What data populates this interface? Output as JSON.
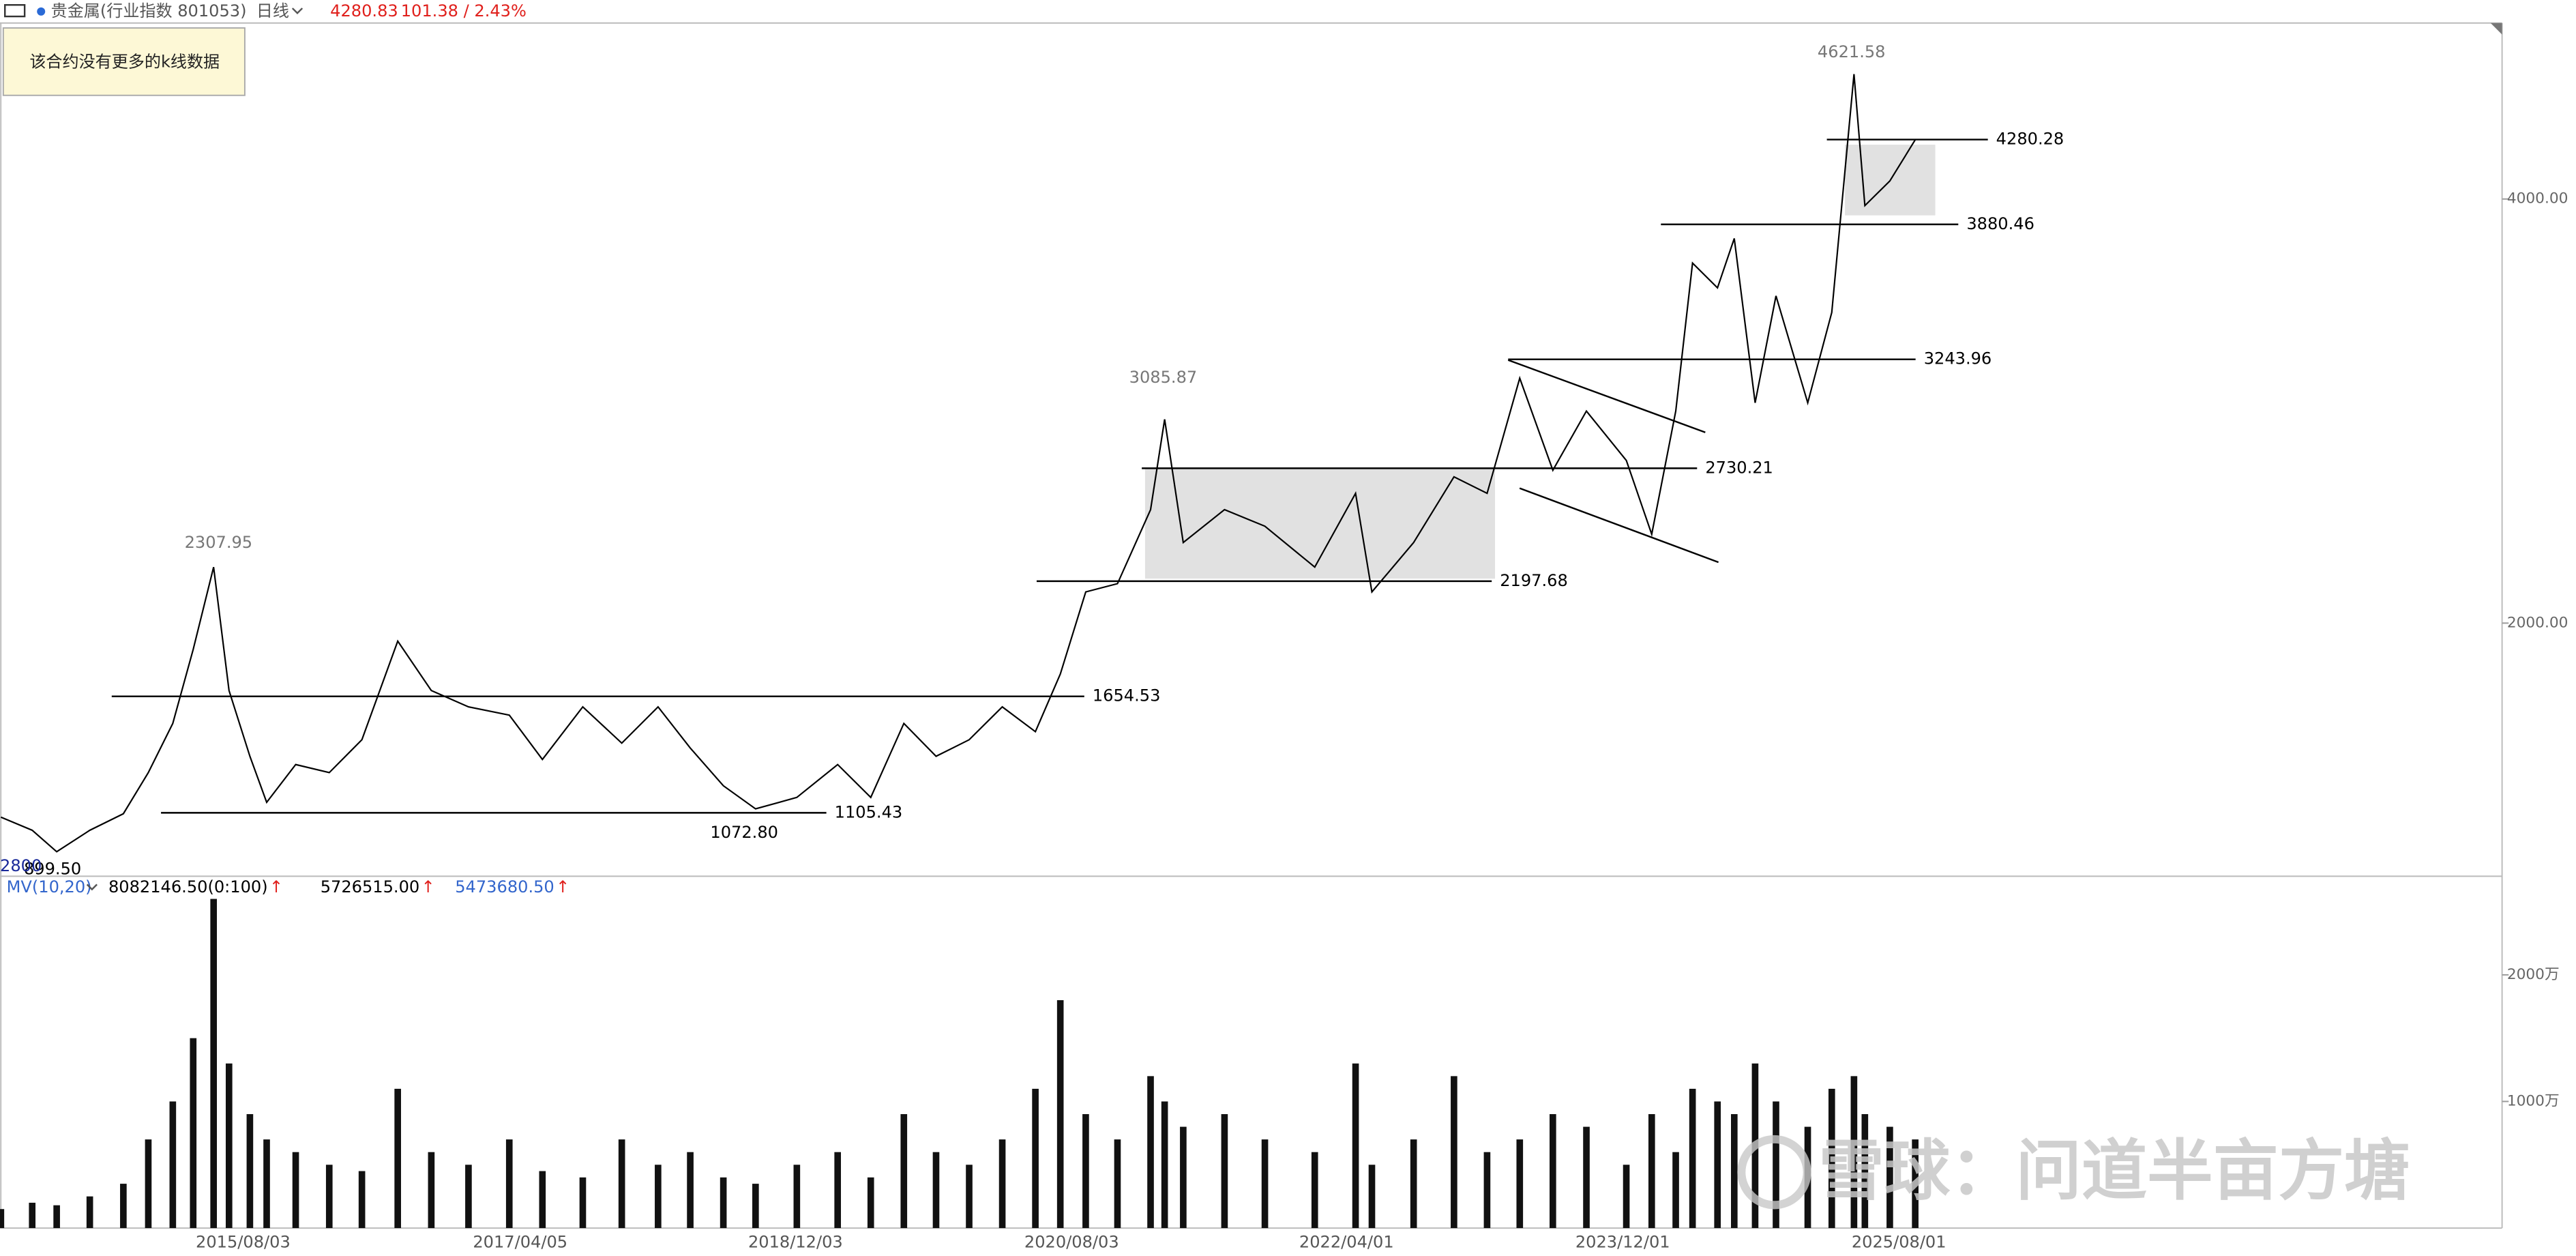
{
  "header": {
    "symbol": "贵金属(行业指数 801053)",
    "period": "日线",
    "price": "4280.83",
    "change": "101.38 / 2.43%"
  },
  "tooltip": "该合约没有更多的k线数据",
  "corner_label": "2800",
  "watermark": "雪球：问道半亩方塘",
  "chart_data": [
    {
      "type": "line",
      "color": "#000000",
      "x": [
        "2014/02/15",
        "2014/04/25",
        "2014/06/18",
        "2014/08/30",
        "2014/11/12",
        "2015/01/06",
        "2015/03/01",
        "2015/04/15",
        "2015/05/30",
        "2015/07/03",
        "2015/08/18",
        "2015/09/24",
        "2015/11/27",
        "2016/02/09",
        "2016/04/21",
        "2016/07/09",
        "2016/09/21",
        "2016/12/12",
        "2017/03/12",
        "2017/05/24",
        "2017/08/21",
        "2017/11/15",
        "2018/02/03",
        "2018/04/15",
        "2018/06/27",
        "2018/09/06",
        "2018/12/06",
        "2019/03/06",
        "2019/05/18",
        "2019/07/30",
        "2019/10/09",
        "2019/12/21",
        "2020/03/03",
        "2020/05/15",
        "2020/07/09",
        "2020/09/03",
        "2020/11/12",
        "2021/01/24",
        "2021/02/24",
        "2021/04/06",
        "2021/07/06",
        "2021/10/03",
        "2022/01/21",
        "2022/04/21",
        "2022/05/27",
        "2022/08/27",
        "2022/11/24",
        "2023/02/05",
        "2023/04/18",
        "2023/06/30",
        "2023/09/12",
        "2023/12/09",
        "2024/02/03",
        "2024/03/27",
        "2024/05/03",
        "2024/06/27",
        "2024/08/03",
        "2024/09/18",
        "2024/11/03",
        "2025/01/12",
        "2025/03/06",
        "2025/04/24",
        "2025/05/18",
        "2025/07/12",
        "2025/09/06"
      ],
      "values": [
        1085,
        1023,
        922,
        1023,
        1101,
        1295,
        1527,
        1876,
        2264,
        1682,
        1372,
        1155,
        1333,
        1295,
        1450,
        1915,
        1682,
        1605,
        1566,
        1357,
        1605,
        1434,
        1605,
        1411,
        1233,
        1124,
        1178,
        1333,
        1178,
        1527,
        1372,
        1450,
        1605,
        1488,
        1760,
        2147,
        2186,
        2535,
        2961,
        2380,
        2535,
        2457,
        2264,
        2612,
        2147,
        2380,
        2690,
        2612,
        3155,
        2721,
        3000,
        2767,
        2419,
        3000,
        3698,
        3581,
        3814,
        3039,
        3543,
        3039,
        3465,
        4589,
        3969,
        4085,
        4279
      ],
      "xlim": [
        "2014/02/13",
        "2029/03/23"
      ],
      "ylim": [
        814,
        4830
      ],
      "yticks": [
        {
          "value": 2000,
          "label": "2000.00"
        },
        {
          "value": 4000,
          "label": "4000.00"
        }
      ],
      "xticks": [
        "2015/08/03",
        "2017/04/05",
        "2018/12/03",
        "2020/08/03",
        "2022/04/01",
        "2023/12/01",
        "2025/08/01"
      ],
      "levels": [
        1654.53,
        1105.43,
        2197.68,
        2730.21,
        3243.96,
        3880.46,
        4280.28
      ],
      "extremes": [
        2307.95,
        3085.87,
        4621.58,
        {
          "value": 1072.8,
          "label": "1072.80"
        },
        {
          "value": 899.5,
          "label": "899.50"
        }
      ]
    },
    {
      "type": "bar",
      "title": "MV(10,20)",
      "title_color": "#3366cc",
      "arrow_color": "#e0201c",
      "color": "#111111",
      "legend": [
        {
          "text": "8082146.50(0:100)",
          "arrow": "↑",
          "color": "#000000"
        },
        {
          "text": "5726515.00",
          "arrow": "↑",
          "color": "#000000"
        },
        {
          "text": "5473680.50",
          "arrow": "↑",
          "color": "#3366cc"
        }
      ],
      "x": [
        "2014/02/15",
        "2014/04/25",
        "2014/06/18",
        "2014/08/30",
        "2014/11/12",
        "2015/01/06",
        "2015/03/01",
        "2015/04/15",
        "2015/05/30",
        "2015/07/03",
        "2015/08/18",
        "2015/09/24",
        "2015/11/27",
        "2016/02/09",
        "2016/04/21",
        "2016/07/09",
        "2016/09/21",
        "2016/12/12",
        "2017/03/12",
        "2017/05/24",
        "2017/08/21",
        "2017/11/15",
        "2018/02/03",
        "2018/04/15",
        "2018/06/27",
        "2018/09/06",
        "2018/12/06",
        "2019/03/06",
        "2019/05/18",
        "2019/07/30",
        "2019/10/09",
        "2019/12/21",
        "2020/03/03",
        "2020/05/15",
        "2020/07/09",
        "2020/09/03",
        "2020/11/12",
        "2021/01/24",
        "2021/02/24",
        "2021/04/06",
        "2021/07/06",
        "2021/10/03",
        "2022/01/21",
        "2022/04/21",
        "2022/05/27",
        "2022/08/27",
        "2022/11/24",
        "2023/02/05",
        "2023/04/18",
        "2023/06/30",
        "2023/09/12",
        "2023/12/09",
        "2024/02/03",
        "2024/03/27",
        "2024/05/03",
        "2024/06/27",
        "2024/08/03",
        "2024/09/18",
        "2024/11/03",
        "2025/01/12",
        "2025/03/06",
        "2025/04/24",
        "2025/05/18",
        "2025/07/12",
        "2025/09/06"
      ],
      "values": [
        150,
        200,
        180,
        250,
        350,
        700,
        1000,
        1500,
        2600,
        1300,
        900,
        700,
        600,
        500,
        450,
        1100,
        600,
        500,
        700,
        450,
        400,
        700,
        500,
        600,
        400,
        350,
        500,
        600,
        400,
        900,
        600,
        500,
        700,
        1100,
        1800,
        900,
        700,
        1200,
        1000,
        800,
        900,
        700,
        600,
        1300,
        500,
        700,
        1200,
        600,
        700,
        900,
        800,
        500,
        900,
        600,
        1100,
        1000,
        900,
        1300,
        1000,
        800,
        1100,
        1200,
        900,
        800,
        700
      ],
      "xlim": [
        "2014/02/13",
        "2029/03/23"
      ],
      "ylim": [
        0,
        2753
      ],
      "yticks": [
        {
          "value": 1000,
          "label": "1000万"
        },
        {
          "value": 2000,
          "label": "2000万"
        }
      ]
    }
  ]
}
